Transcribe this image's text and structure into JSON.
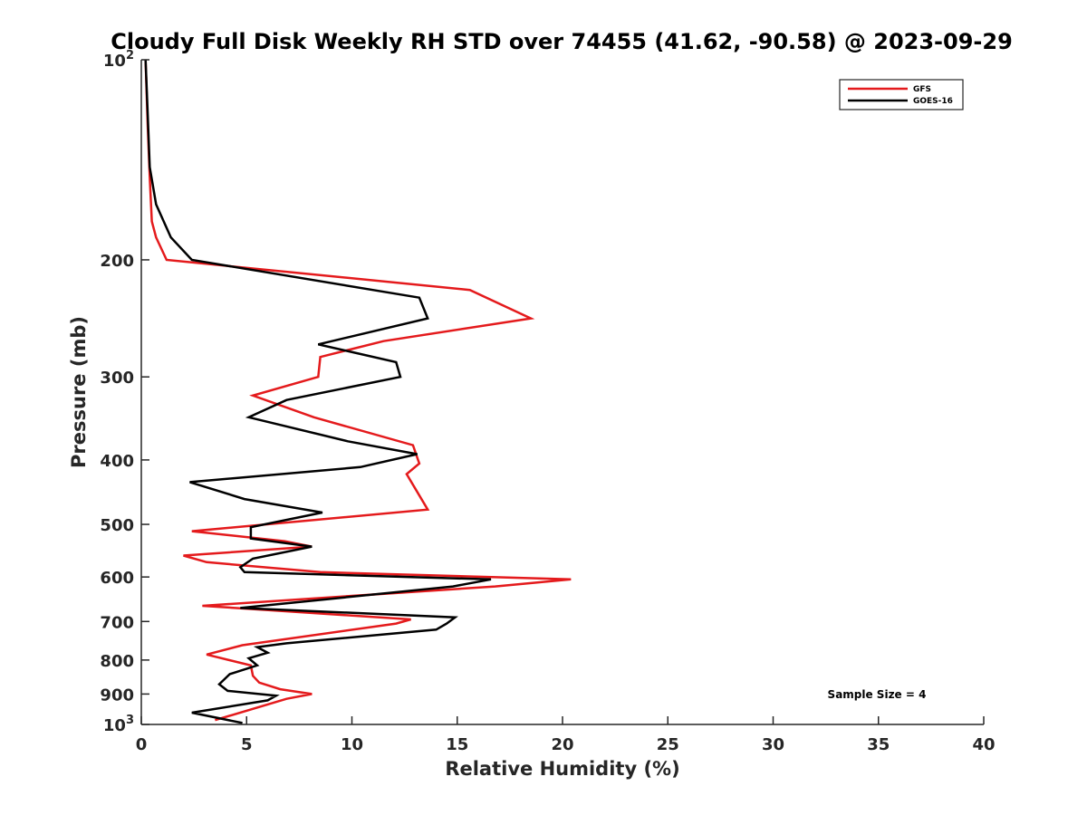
{
  "chart_data": {
    "type": "line",
    "title": "Cloudy Full Disk Weekly RH STD over 74455 (41.62, -90.58) @ 2023-09-29",
    "xlabel": "Relative Humidity (%)",
    "ylabel": "Pressure (mb)",
    "xlim": [
      0,
      40
    ],
    "ylim": [
      100,
      1000
    ],
    "y_scale": "log",
    "y_reversed": true,
    "x_ticks": [
      0,
      5,
      10,
      15,
      20,
      25,
      30,
      35,
      40
    ],
    "y_ticks": [
      {
        "value": 100,
        "label": "10",
        "sup": "2"
      },
      {
        "value": 200,
        "label": "200"
      },
      {
        "value": 300,
        "label": "300"
      },
      {
        "value": 400,
        "label": "400"
      },
      {
        "value": 500,
        "label": "500"
      },
      {
        "value": 600,
        "label": "600"
      },
      {
        "value": 700,
        "label": "700"
      },
      {
        "value": 800,
        "label": "800"
      },
      {
        "value": 900,
        "label": "900"
      },
      {
        "value": 1000,
        "label": "10",
        "sup": "3"
      }
    ],
    "grid": false,
    "legend_position": "top-right",
    "series": [
      {
        "name": "GFS",
        "color": "#e41a1c",
        "points": [
          [
            0.2,
            100
          ],
          [
            0.3,
            125
          ],
          [
            0.4,
            150
          ],
          [
            0.5,
            175
          ],
          [
            0.7,
            185
          ],
          [
            1.2,
            200
          ],
          [
            15.6,
            222
          ],
          [
            18.5,
            245
          ],
          [
            11.5,
            265
          ],
          [
            8.5,
            280
          ],
          [
            8.4,
            300
          ],
          [
            5.3,
            320
          ],
          [
            8.2,
            345
          ],
          [
            12.9,
            380
          ],
          [
            13.2,
            405
          ],
          [
            12.6,
            420
          ],
          [
            13.6,
            475
          ],
          [
            2.4,
            512
          ],
          [
            6.8,
            530
          ],
          [
            8.1,
            540
          ],
          [
            2.0,
            557
          ],
          [
            3.1,
            570
          ],
          [
            8.5,
            590
          ],
          [
            20.4,
            605
          ],
          [
            16.8,
            620
          ],
          [
            2.9,
            663
          ],
          [
            12.8,
            695
          ],
          [
            12.1,
            705
          ],
          [
            4.8,
            760
          ],
          [
            3.1,
            785
          ],
          [
            5.2,
            815
          ],
          [
            5.3,
            845
          ],
          [
            5.6,
            865
          ],
          [
            6.6,
            885
          ],
          [
            8.1,
            900
          ],
          [
            6.9,
            915
          ],
          [
            3.5,
            985
          ]
        ]
      },
      {
        "name": "GOES-16",
        "color": "#000000",
        "points": [
          [
            0.2,
            100
          ],
          [
            0.3,
            120
          ],
          [
            0.4,
            145
          ],
          [
            0.7,
            165
          ],
          [
            1.4,
            185
          ],
          [
            2.4,
            200
          ],
          [
            13.2,
            228
          ],
          [
            13.6,
            245
          ],
          [
            8.4,
            268
          ],
          [
            12.1,
            285
          ],
          [
            12.3,
            300
          ],
          [
            6.9,
            325
          ],
          [
            5.1,
            345
          ],
          [
            9.8,
            375
          ],
          [
            13.1,
            392
          ],
          [
            10.4,
            410
          ],
          [
            2.3,
            432
          ],
          [
            4.9,
            458
          ],
          [
            8.6,
            480
          ],
          [
            5.2,
            505
          ],
          [
            5.2,
            525
          ],
          [
            8.1,
            540
          ],
          [
            5.3,
            563
          ],
          [
            4.7,
            580
          ],
          [
            4.9,
            590
          ],
          [
            16.6,
            605
          ],
          [
            14.8,
            620
          ],
          [
            4.7,
            668
          ],
          [
            14.9,
            690
          ],
          [
            14.5,
            705
          ],
          [
            14.0,
            720
          ],
          [
            6.9,
            755
          ],
          [
            5.5,
            765
          ],
          [
            6.0,
            780
          ],
          [
            5.1,
            795
          ],
          [
            5.5,
            815
          ],
          [
            4.2,
            840
          ],
          [
            3.7,
            870
          ],
          [
            4.1,
            890
          ],
          [
            6.4,
            905
          ],
          [
            6.0,
            920
          ],
          [
            2.4,
            960
          ],
          [
            4.8,
            995
          ]
        ]
      }
    ],
    "annotations": [
      "Sample Size = 4"
    ]
  }
}
